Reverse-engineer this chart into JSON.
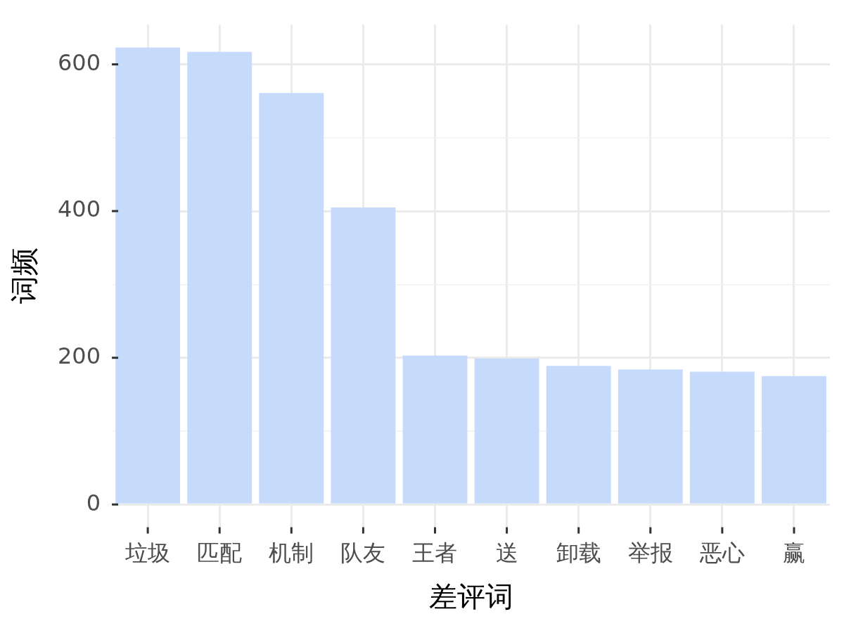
{
  "chart_data": {
    "type": "bar",
    "xlabel": "差评词",
    "ylabel": "词频",
    "categories": [
      "垃圾",
      "匹配",
      "机制",
      "队友",
      "王者",
      "送",
      "卸载",
      "举报",
      "恶心",
      "赢"
    ],
    "values": [
      623,
      617,
      561,
      405,
      203,
      199,
      189,
      184,
      181,
      175
    ],
    "color": "#c6dbfc",
    "ylim": [
      -31,
      654
    ],
    "yticks": [
      0,
      {
        "value": 100,
        "label": null
      },
      200,
      {
        "value": 300,
        "label": null
      },
      400,
      {
        "value": 500,
        "label": null
      },
      600
    ],
    "grid": true
  }
}
